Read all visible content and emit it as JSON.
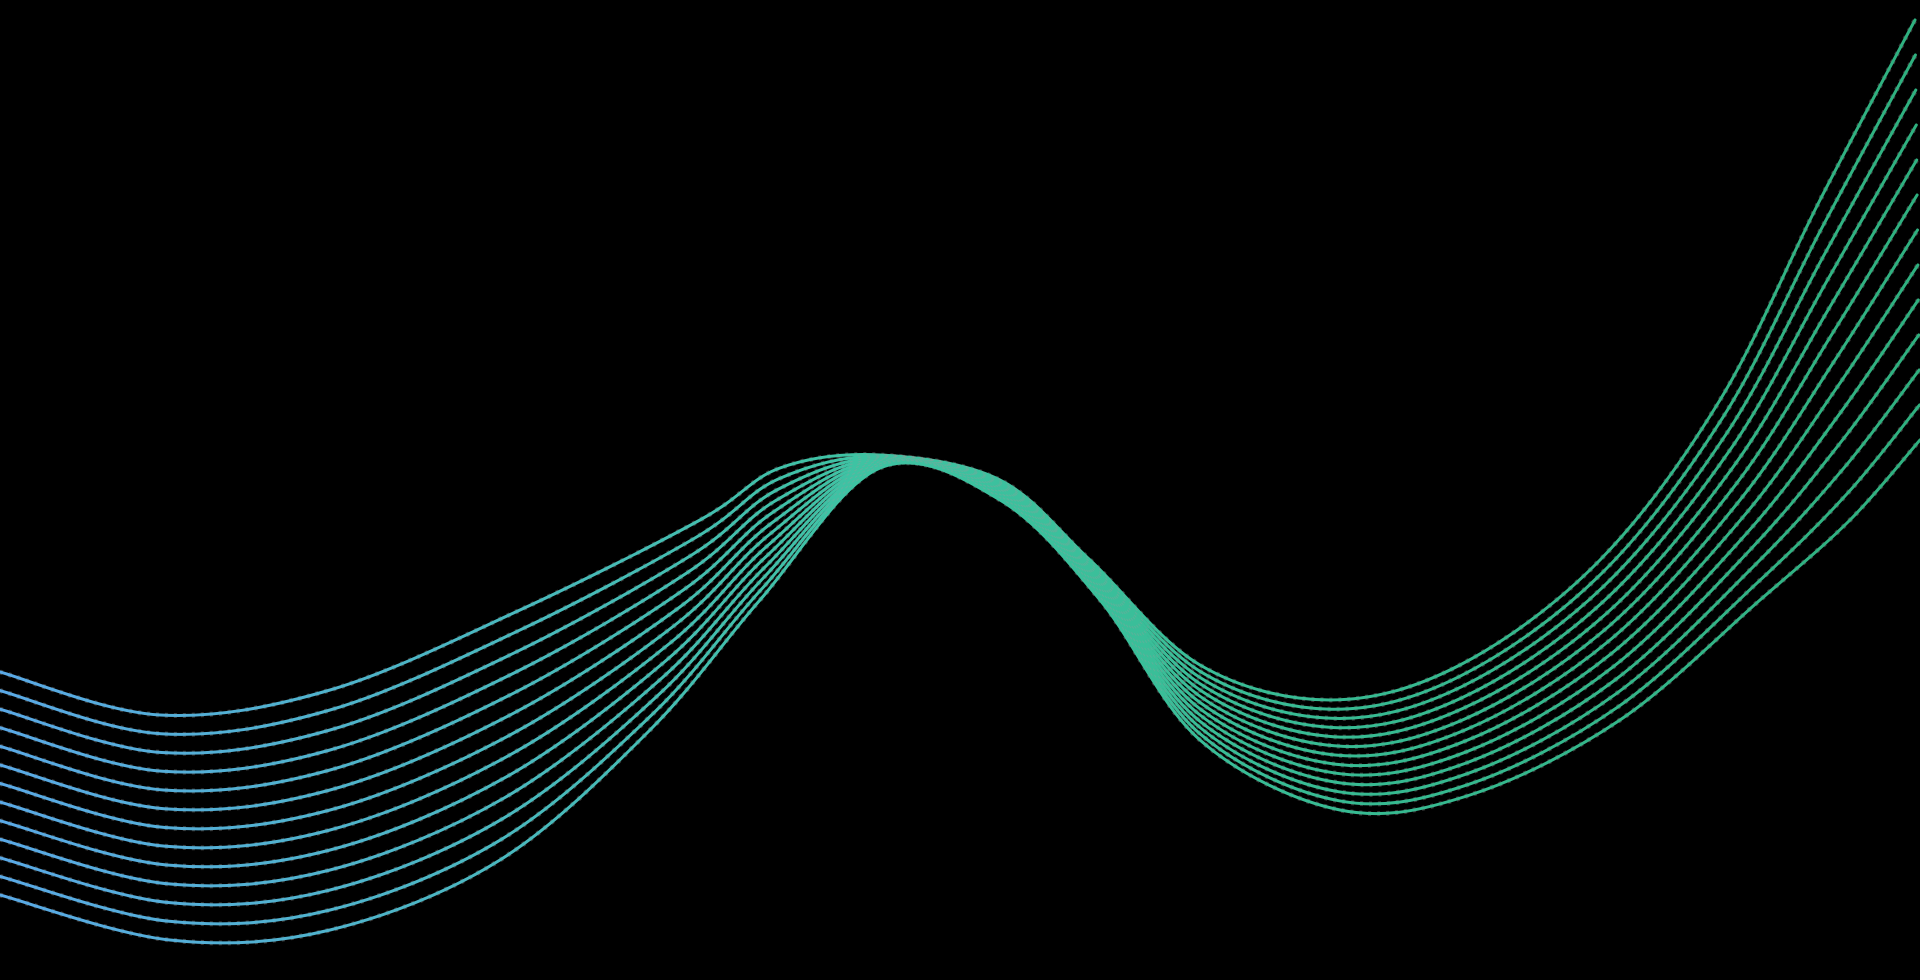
{
  "background": {
    "color": "#000000"
  },
  "wave": {
    "line_count": 13,
    "gradient_start_color": "#5aa9e6",
    "gradient_mid_color": "#3ec3a2",
    "gradient_end_color": "#2fb07f",
    "mesh_color": "#9a9a9a"
  }
}
